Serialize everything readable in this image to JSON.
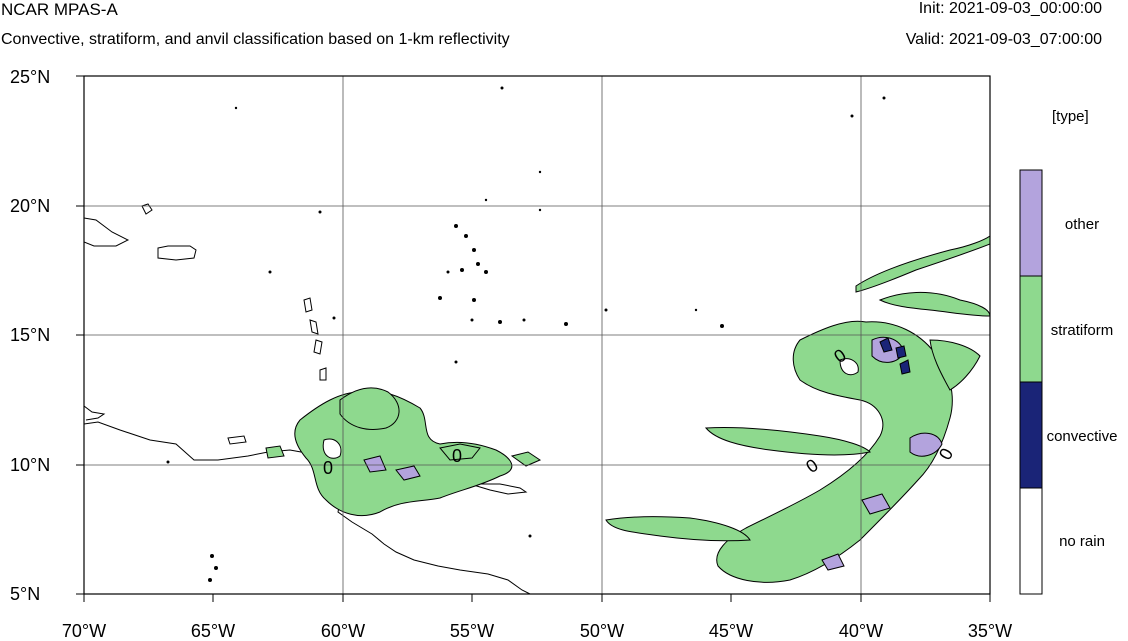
{
  "header": {
    "title": "NCAR MPAS-A",
    "subtitle": "Convective, stratiform, and anvil classification based on 1-km reflectivity",
    "init": "Init: 2021-09-03_00:00:00",
    "valid": "Valid: 2021-09-03_07:00:00"
  },
  "map": {
    "lon_range": [
      -70,
      -35
    ],
    "lat_range": [
      5,
      25
    ],
    "lat_ticks": [
      "25°N",
      "20°N",
      "15°N",
      "10°N",
      "5°N"
    ],
    "lon_ticks": [
      "70°W",
      "65°W",
      "60°W",
      "55°W",
      "50°W",
      "45°W",
      "40°W",
      "35°W"
    ],
    "contour_labels": [
      "0",
      "0",
      "0",
      "0",
      "0"
    ],
    "grid": true
  },
  "legend": {
    "title": "[type]",
    "entries": [
      {
        "label": "other",
        "color": "#b3a3dd"
      },
      {
        "label": "stratiform",
        "color": "#8ed98e"
      },
      {
        "label": "convective",
        "color": "#1a2477"
      },
      {
        "label": "no rain",
        "color": "#ffffff"
      }
    ]
  },
  "colors": {
    "stratiform": "#8ed98e",
    "convective": "#1a2477",
    "other": "#b3a3dd"
  }
}
